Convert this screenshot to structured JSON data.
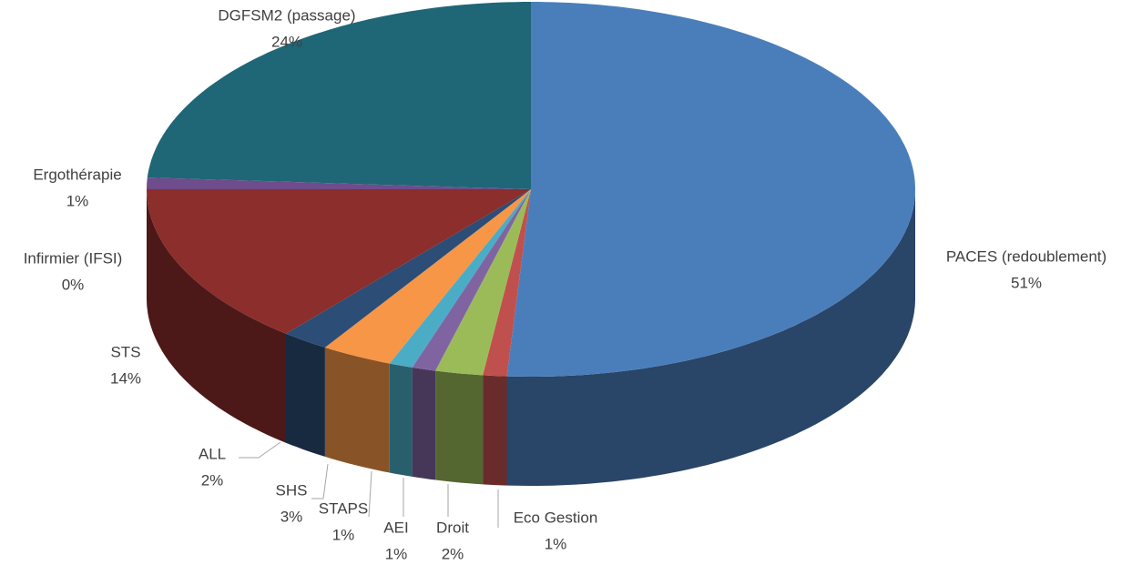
{
  "chart_data": {
    "type": "pie",
    "categories": [
      "PACES (redoublement)",
      "Eco Gestion",
      "Droit",
      "AEI",
      "STAPS",
      "SHS",
      "ALL",
      "STS",
      "Infirmier (IFSI)",
      "Ergothérapie",
      "DGFSM2 (passage)"
    ],
    "values": [
      51,
      1,
      2,
      1,
      1,
      3,
      2,
      14,
      0,
      1,
      24
    ],
    "value_labels": [
      "51%",
      "1%",
      "2%",
      "1%",
      "1%",
      "3%",
      "2%",
      "14%",
      "0%",
      "1%",
      "24%"
    ],
    "colors": [
      "#4a7ebb",
      "#c0504d",
      "#9bbb59",
      "#8064a2",
      "#4bacc6",
      "#f79646",
      "#2c4d75",
      "#8b2e2c",
      "#a9a9a9",
      "#6f4c8c",
      "#1f6677"
    ]
  }
}
